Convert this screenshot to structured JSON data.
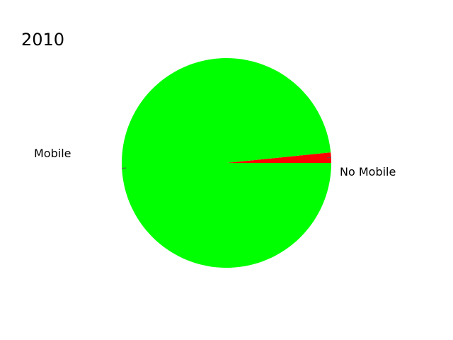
{
  "chart_data": {
    "type": "pie",
    "title": "2010",
    "slices": [
      {
        "label": "No Mobile",
        "value": 1.6,
        "color": "#ff0000"
      },
      {
        "label": "Mobile",
        "value": 98.4,
        "color": "#00ff00"
      }
    ]
  }
}
